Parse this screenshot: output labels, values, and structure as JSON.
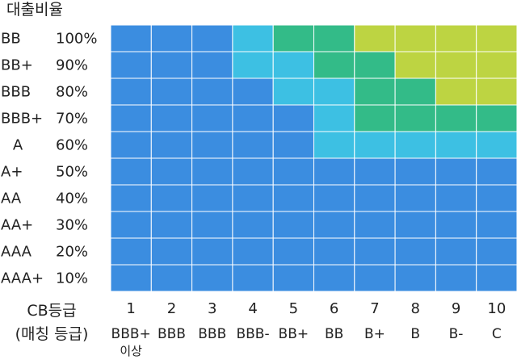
{
  "chart_data": {
    "type": "heatmap",
    "title": "",
    "y_header": "대출비율",
    "x_header": [
      "CB등급",
      "(매칭 등급)"
    ],
    "rows": [
      {
        "grade": "BB",
        "ratio": "100%"
      },
      {
        "grade": "BB+",
        "ratio": "90%"
      },
      {
        "grade": "BBB",
        "ratio": "80%"
      },
      {
        "grade": "BBB+",
        "ratio": "70%"
      },
      {
        "grade": "A",
        "ratio": "60%"
      },
      {
        "grade": "A+",
        "ratio": "50%"
      },
      {
        "grade": "AA",
        "ratio": "40%"
      },
      {
        "grade": "AA+",
        "ratio": "30%"
      },
      {
        "grade": "AAA",
        "ratio": "20%"
      },
      {
        "grade": "AAA+",
        "ratio": "10%"
      }
    ],
    "columns": [
      {
        "num": "1",
        "grade": "BBB+",
        "note": "이상"
      },
      {
        "num": "2",
        "grade": "BBB",
        "note": ""
      },
      {
        "num": "3",
        "grade": "BBB",
        "note": ""
      },
      {
        "num": "4",
        "grade": "BBB-",
        "note": ""
      },
      {
        "num": "5",
        "grade": "BB+",
        "note": ""
      },
      {
        "num": "6",
        "grade": "BB",
        "note": ""
      },
      {
        "num": "7",
        "grade": "B+",
        "note": ""
      },
      {
        "num": "8",
        "grade": "B",
        "note": ""
      },
      {
        "num": "9",
        "grade": "B-",
        "note": ""
      },
      {
        "num": "10",
        "grade": "C",
        "note": ""
      }
    ],
    "levels": [
      [
        0,
        0,
        0,
        1,
        2,
        2,
        3,
        3,
        3,
        3
      ],
      [
        0,
        0,
        0,
        1,
        1,
        2,
        2,
        3,
        3,
        3
      ],
      [
        0,
        0,
        0,
        0,
        1,
        1,
        2,
        2,
        3,
        3
      ],
      [
        0,
        0,
        0,
        0,
        0,
        1,
        2,
        2,
        2,
        2
      ],
      [
        0,
        0,
        0,
        0,
        0,
        1,
        1,
        1,
        1,
        1
      ],
      [
        0,
        0,
        0,
        0,
        0,
        0,
        0,
        0,
        0,
        0
      ],
      [
        0,
        0,
        0,
        0,
        0,
        0,
        0,
        0,
        0,
        0
      ],
      [
        0,
        0,
        0,
        0,
        0,
        0,
        0,
        0,
        0,
        0
      ],
      [
        0,
        0,
        0,
        0,
        0,
        0,
        0,
        0,
        0,
        0
      ],
      [
        0,
        0,
        0,
        0,
        0,
        0,
        0,
        0,
        0,
        0
      ]
    ],
    "palette": [
      "#3b8de0",
      "#3dc0e3",
      "#33bb88",
      "#bdd442"
    ],
    "grid_line_color": "#ffffff",
    "legend": "none"
  }
}
